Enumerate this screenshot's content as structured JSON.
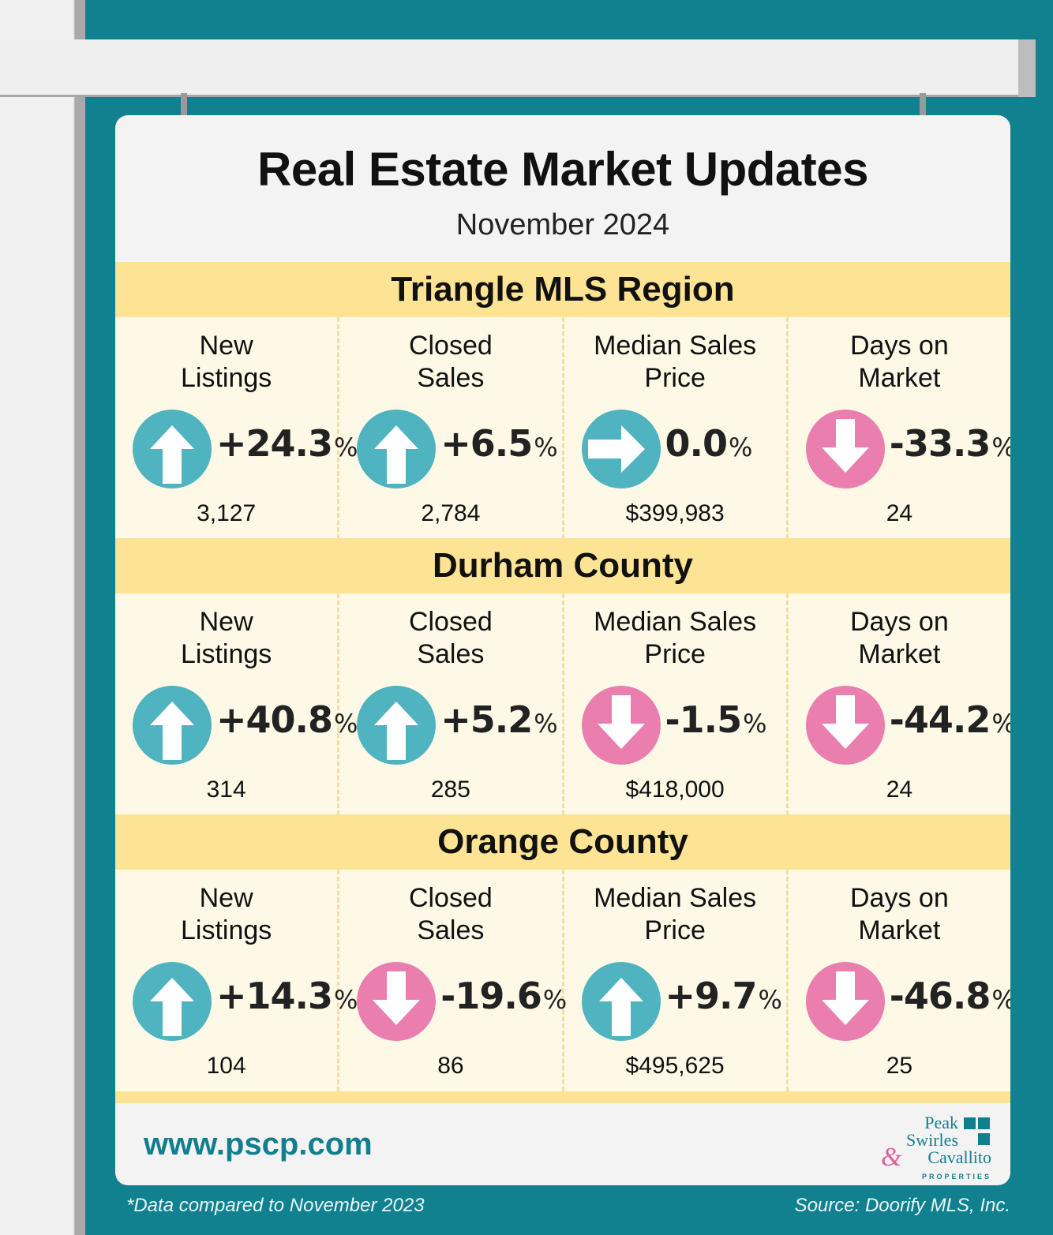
{
  "header": {
    "title": "Real Estate Market Updates",
    "subtitle": "November 2024"
  },
  "colors": {
    "up": "#4fb3c0",
    "down": "#ea7faf",
    "flat": "#4fb3c0",
    "band": "#fde394"
  },
  "regions": [
    {
      "name": "Triangle MLS Region",
      "metrics": [
        {
          "label": "New\nListings",
          "direction": "up",
          "change": "+24.3",
          "unit": "%",
          "value": "3,127"
        },
        {
          "label": "Closed\nSales",
          "direction": "up",
          "change": "+6.5",
          "unit": "%",
          "value": "2,784"
        },
        {
          "label": "Median Sales\nPrice",
          "direction": "right",
          "change": "0.0",
          "unit": "%",
          "value": "$399,983"
        },
        {
          "label": "Days on\nMarket",
          "direction": "down",
          "change": "-33.3",
          "unit": "%",
          "value": "24"
        }
      ]
    },
    {
      "name": "Durham County",
      "metrics": [
        {
          "label": "New\nListings",
          "direction": "up",
          "change": "+40.8",
          "unit": "%",
          "value": "314"
        },
        {
          "label": "Closed\nSales",
          "direction": "up",
          "change": "+5.2",
          "unit": "%",
          "value": "285"
        },
        {
          "label": "Median Sales\nPrice",
          "direction": "down",
          "change": "-1.5",
          "unit": "%",
          "value": "$418,000"
        },
        {
          "label": "Days on\nMarket",
          "direction": "down",
          "change": "-44.2",
          "unit": "%",
          "value": "24"
        }
      ]
    },
    {
      "name": "Orange County",
      "metrics": [
        {
          "label": "New\nListings",
          "direction": "up",
          "change": "+14.3",
          "unit": "%",
          "value": "104"
        },
        {
          "label": "Closed\nSales",
          "direction": "down",
          "change": "-19.6",
          "unit": "%",
          "value": "86"
        },
        {
          "label": "Median Sales\nPrice",
          "direction": "up",
          "change": "+9.7",
          "unit": "%",
          "value": "$495,625"
        },
        {
          "label": "Days on\nMarket",
          "direction": "down",
          "change": "-46.8",
          "unit": "%",
          "value": "25"
        }
      ]
    }
  ],
  "footer": {
    "website": "www.pscp.com",
    "logo": {
      "line1": "Peak",
      "line2": "Swirles",
      "line3": "Cavallito",
      "amp": "&",
      "tagline": "PROPERTIES"
    },
    "note": "*Data compared to November 2023",
    "source": "Source: Doorify MLS, Inc."
  }
}
